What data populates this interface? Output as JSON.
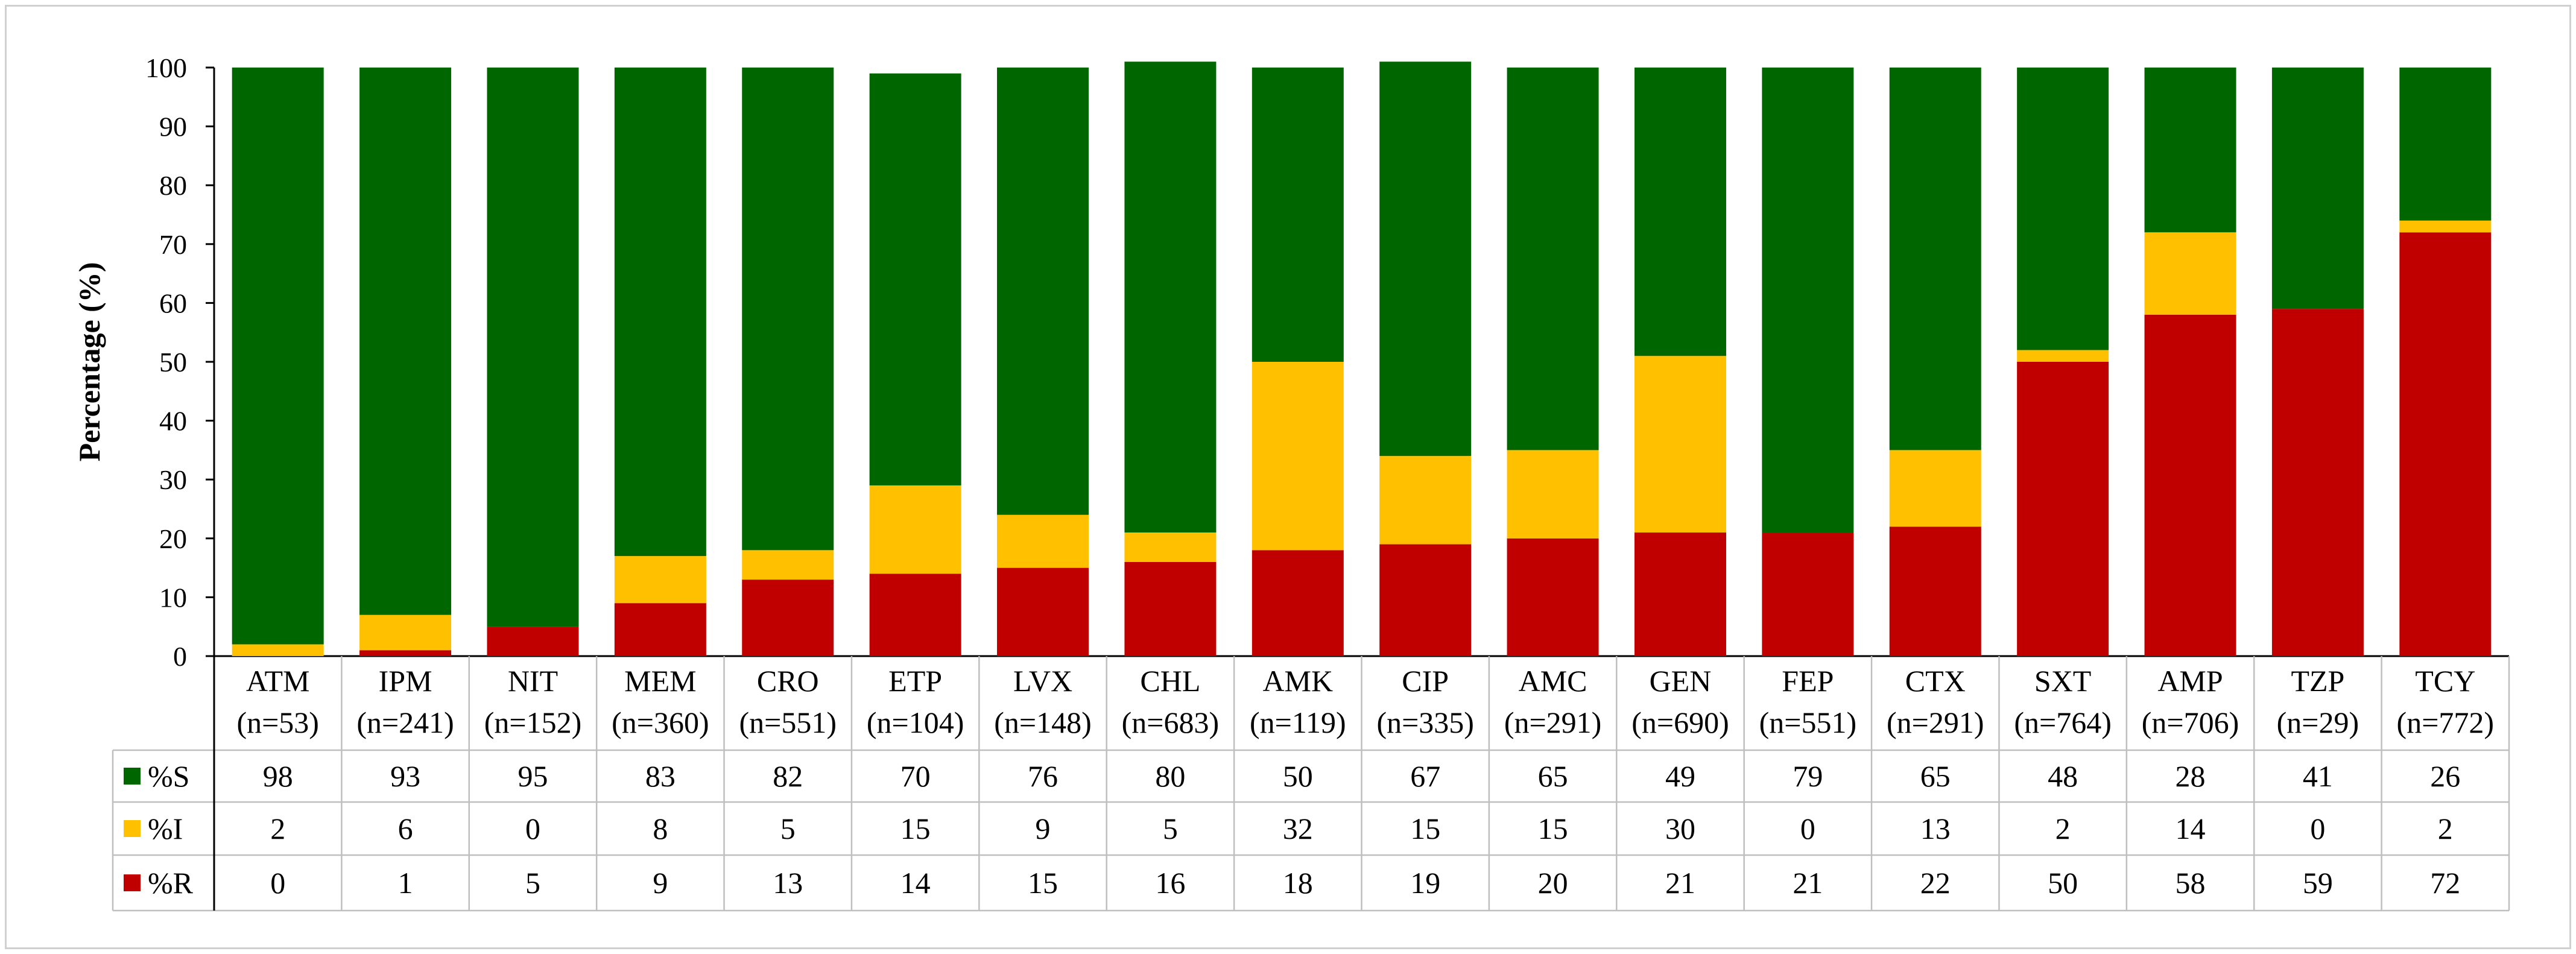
{
  "chart_data": {
    "type": "bar",
    "stacked": true,
    "title": "",
    "xlabel": "",
    "ylabel": "Percentage (%)",
    "ylim": [
      0,
      100
    ],
    "yticks": [
      0,
      10,
      20,
      30,
      40,
      50,
      60,
      70,
      80,
      90,
      100
    ],
    "grid": false,
    "categories": [
      "ATM",
      "IPM",
      "NIT",
      "MEM",
      "CRO",
      "ETP",
      "LVX",
      "CHL",
      "AMK",
      "CIP",
      "AMC",
      "GEN",
      "FEP",
      "CTX",
      "SXT",
      "AMP",
      "TZP",
      "TCY"
    ],
    "category_counts": [
      "(n=53)",
      "(n=241)",
      "(n=152)",
      "(n=360)",
      "(n=551)",
      "(n=104)",
      "(n=148)",
      "(n=683)",
      "(n=119)",
      "(n=335)",
      "(n=291)",
      "(n=690)",
      "(n=551)",
      "(n=291)",
      "(n=764)",
      "(n=706)",
      "(n=29)",
      "(n=772)"
    ],
    "series": [
      {
        "name": "%R",
        "color": "#c00000",
        "values": [
          0,
          1,
          5,
          9,
          13,
          14,
          15,
          16,
          18,
          19,
          20,
          21,
          21,
          22,
          50,
          58,
          59,
          72
        ]
      },
      {
        "name": "%I",
        "color": "#ffc000",
        "values": [
          2,
          6,
          0,
          8,
          5,
          15,
          9,
          5,
          32,
          15,
          15,
          30,
          0,
          13,
          2,
          14,
          0,
          2
        ]
      },
      {
        "name": "%S",
        "color": "#006600",
        "values": [
          98,
          93,
          95,
          83,
          82,
          70,
          76,
          80,
          50,
          67,
          65,
          49,
          79,
          65,
          48,
          28,
          41,
          26
        ]
      }
    ],
    "data_table": {
      "row_order": [
        "%S",
        "%I",
        "%R"
      ]
    }
  }
}
